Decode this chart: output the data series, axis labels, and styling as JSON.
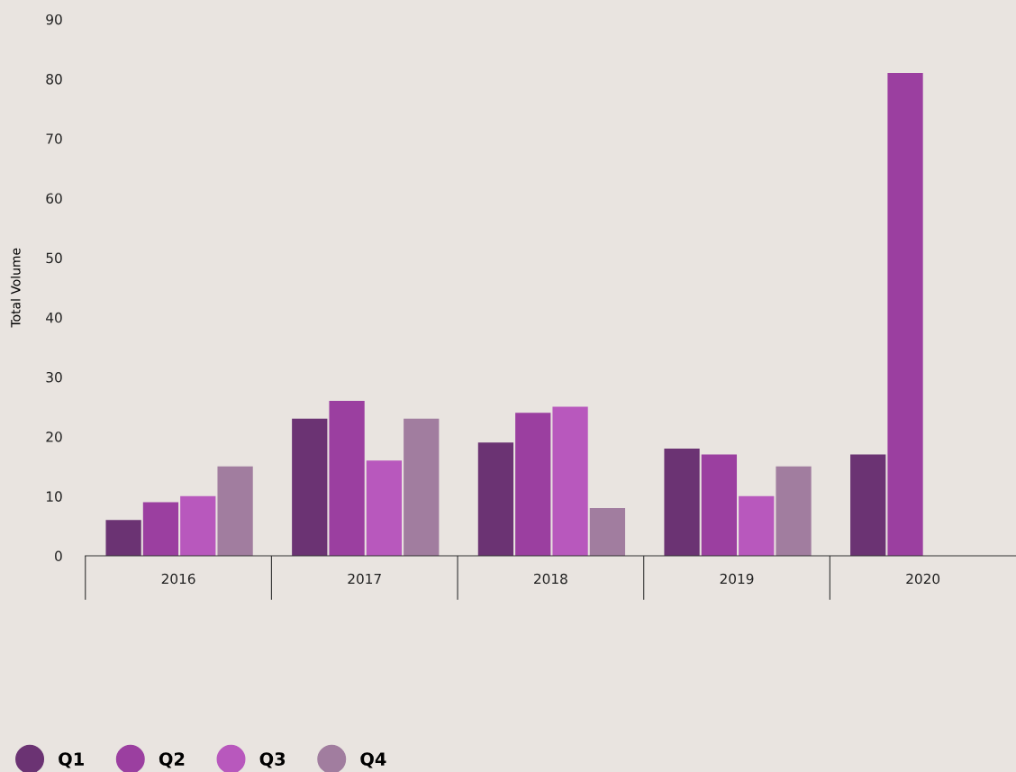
{
  "chart_data": {
    "type": "bar",
    "ylabel": "Total Volume",
    "categories": [
      "2016",
      "2017",
      "2018",
      "2019",
      "2020"
    ],
    "series": [
      {
        "name": "Q1",
        "color": "#6b3373",
        "values": [
          6,
          23,
          19,
          18,
          17
        ]
      },
      {
        "name": "Q2",
        "color": "#9b3fa0",
        "values": [
          9,
          26,
          24,
          17,
          81
        ]
      },
      {
        "name": "Q3",
        "color": "#b858bd",
        "values": [
          10,
          16,
          25,
          10,
          null
        ]
      },
      {
        "name": "Q4",
        "color": "#a17d9f",
        "values": [
          15,
          23,
          8,
          15,
          null
        ]
      }
    ],
    "ylim": [
      0,
      90
    ],
    "yticks": [
      0,
      10,
      20,
      30,
      40,
      50,
      60,
      70,
      80,
      90
    ],
    "grid": false,
    "legend": "bottom left"
  }
}
